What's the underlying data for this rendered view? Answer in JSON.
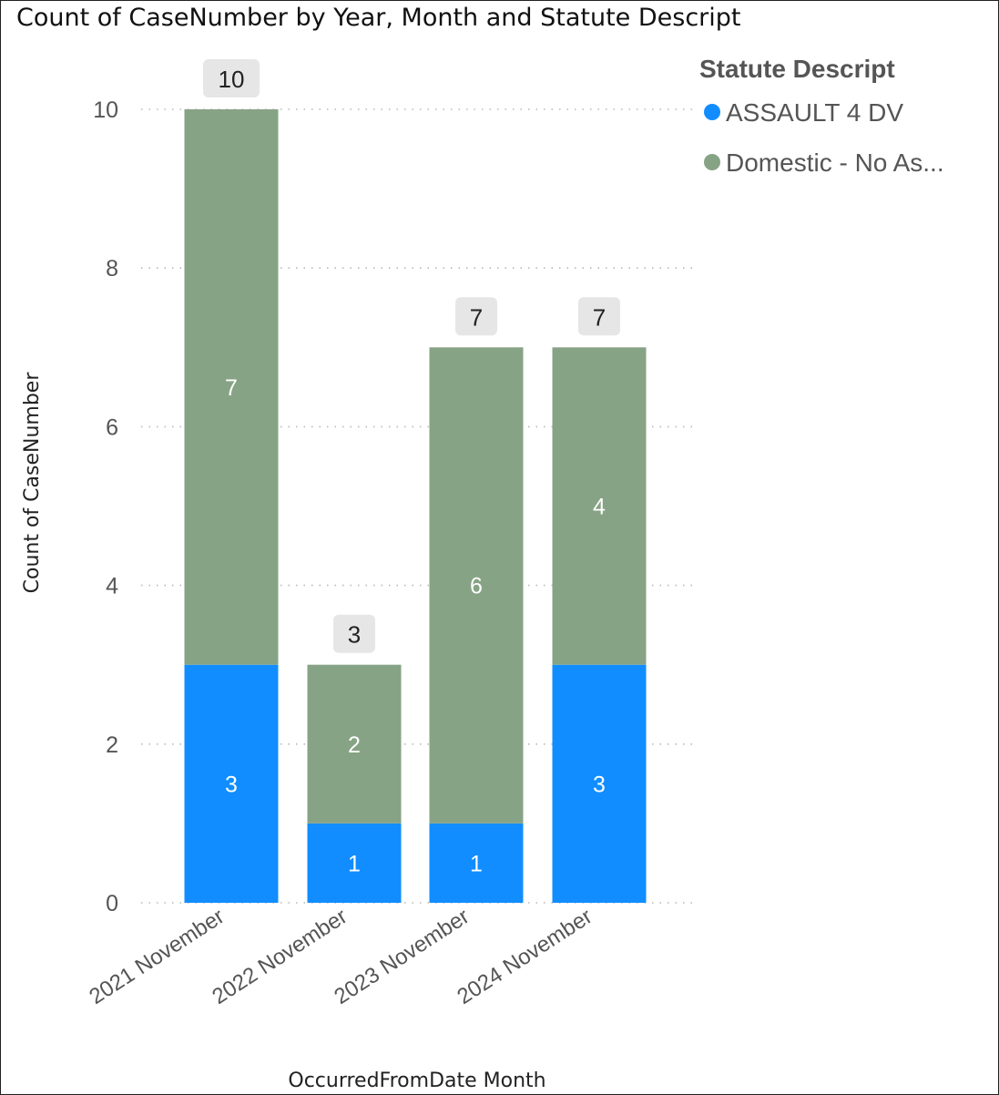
{
  "chart_data": {
    "type": "bar",
    "stacked": true,
    "title": "Count of CaseNumber by Year, Month and Statute Descript",
    "xlabel": "OccurredFromDate Month",
    "ylabel": "Count of CaseNumber",
    "categories": [
      "2021 November",
      "2022 November",
      "2023 November",
      "2024 November"
    ],
    "series": [
      {
        "name": "ASSAULT 4 DV",
        "color": "#118DFF",
        "values": [
          3,
          1,
          1,
          3
        ]
      },
      {
        "name": "Domestic - No As...",
        "color": "#87A385",
        "values": [
          7,
          2,
          6,
          4
        ]
      }
    ],
    "totals": [
      10,
      3,
      7,
      7
    ],
    "ylim": [
      0,
      10
    ],
    "yticks": [
      0,
      2,
      4,
      6,
      8,
      10
    ],
    "grid": true,
    "legend": {
      "title": "Statute Descript",
      "position": "top-right"
    }
  }
}
